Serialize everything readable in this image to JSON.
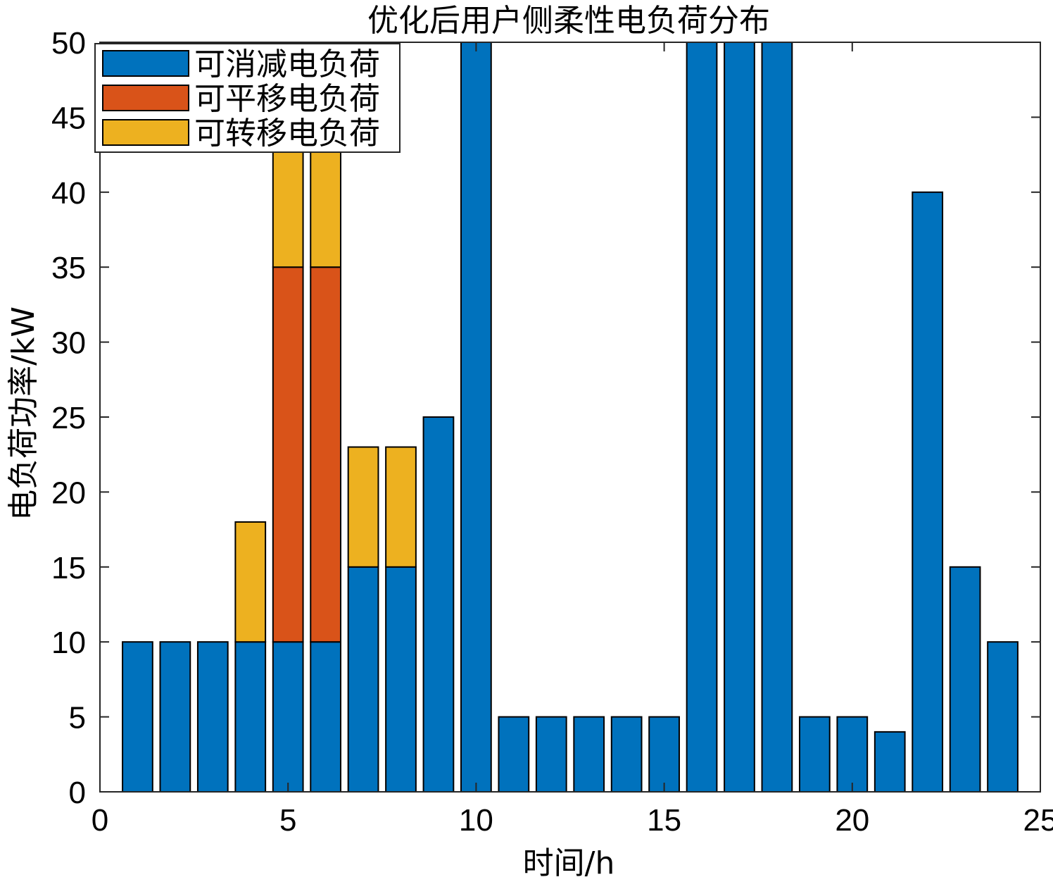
{
  "chart_data": {
    "type": "bar",
    "stacked": true,
    "title": "优化后用户侧柔性电负荷分布",
    "xlabel": "时间/h",
    "ylabel": "电负荷功率/kW",
    "xlim": [
      0,
      25
    ],
    "ylim": [
      0,
      50
    ],
    "xticks": [
      0,
      5,
      10,
      15,
      20,
      25
    ],
    "yticks": [
      0,
      5,
      10,
      15,
      20,
      25,
      30,
      35,
      40,
      45,
      50
    ],
    "x": [
      1,
      2,
      3,
      4,
      5,
      6,
      7,
      8,
      9,
      10,
      11,
      12,
      13,
      14,
      15,
      16,
      17,
      18,
      19,
      20,
      21,
      22,
      23,
      24
    ],
    "series": [
      {
        "name": "可消减电负荷",
        "color": "#0072BD",
        "values": [
          10,
          10,
          10,
          10,
          10,
          10,
          15,
          15,
          25,
          50,
          5,
          5,
          5,
          5,
          5,
          50,
          50,
          50,
          5,
          5,
          4,
          40,
          15,
          10
        ]
      },
      {
        "name": "可平移电负荷",
        "color": "#D95319",
        "values": [
          0,
          0,
          0,
          0,
          25,
          25,
          0,
          0,
          0,
          0,
          0,
          0,
          0,
          0,
          0,
          0,
          0,
          0,
          0,
          0,
          0,
          0,
          0,
          0
        ]
      },
      {
        "name": "可转移电负荷",
        "color": "#EDB120",
        "values": [
          0,
          0,
          0,
          8,
          8,
          8,
          8,
          8,
          0,
          0,
          0,
          0,
          0,
          0,
          0,
          0,
          0,
          0,
          0,
          0,
          0,
          0,
          0,
          0
        ]
      }
    ],
    "legend_position": "top-left",
    "grid": false
  }
}
